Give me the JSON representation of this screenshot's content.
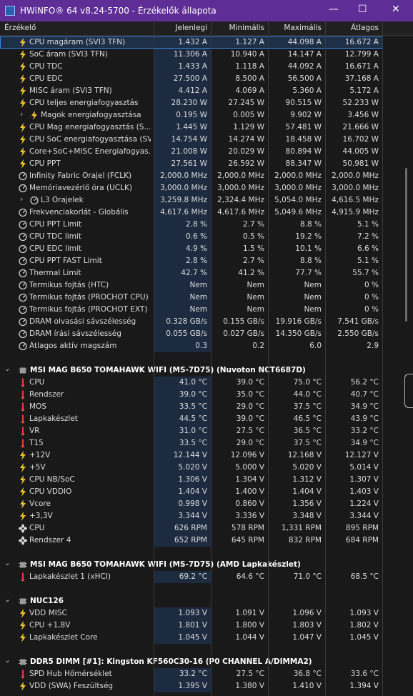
{
  "window": {
    "title": "HWiNFO® 64 v8.24-5700 - Érzékelők állapota"
  },
  "columns": [
    "Érzékelő",
    "Jelenlegi",
    "Minimális",
    "Maximális",
    "Átlagos"
  ],
  "sections": [
    {
      "rows": [
        {
          "label": "CPU magáram (SVI3 TFN)",
          "values": [
            "1.432 A",
            "1.127 A",
            "44.098 A",
            "16.672 A"
          ]
        },
        {
          "label": "SoC áram (SVI3 TFN)",
          "values": [
            "11.306 A",
            "10.940 A",
            "14.147 A",
            "12.799 A"
          ]
        },
        {
          "label": "CPU TDC",
          "values": [
            "1.433 A",
            "1.118 A",
            "44.092 A",
            "16.671 A"
          ]
        },
        {
          "label": "CPU EDC",
          "values": [
            "27.500 A",
            "8.500 A",
            "56.500 A",
            "37.168 A"
          ]
        },
        {
          "label": "MISC áram (SVI3 TFN)",
          "values": [
            "4.412 A",
            "4.069 A",
            "5.360 A",
            "5.172 A"
          ]
        },
        {
          "label": "CPU teljes energiafogyasztás",
          "values": [
            "28.230 W",
            "27.245 W",
            "90.515 W",
            "52.233 W"
          ]
        },
        {
          "label": "Magok energiafogyasztása",
          "values": [
            "0.195 W",
            "0.005 W",
            "9.902 W",
            "3.456 W"
          ]
        },
        {
          "label": "CPU Mag energiafogyasztás (S...",
          "values": [
            "1.445 W",
            "1.129 W",
            "57.481 W",
            "21.666 W"
          ]
        },
        {
          "label": "CPU SoC energiafogyasztása (SV...",
          "values": [
            "14.754 W",
            "14.274 W",
            "18.458 W",
            "16.702 W"
          ]
        },
        {
          "label": "Core+SoC+MISC Energiafogyas...",
          "values": [
            "21.008 W",
            "20.029 W",
            "80.894 W",
            "44.005 W"
          ]
        },
        {
          "label": "CPU PPT",
          "values": [
            "27.561 W",
            "26.592 W",
            "88.347 W",
            "50.981 W"
          ]
        },
        {
          "label": "Infinity Fabric Órajel (FCLK)",
          "values": [
            "2,000.0 MHz",
            "2,000.0 MHz",
            "2,000.0 MHz",
            "2,000.0 MHz"
          ]
        },
        {
          "label": "Memóriavezérlő óra (UCLK)",
          "values": [
            "3,000.0 MHz",
            "3,000.0 MHz",
            "3,000.0 MHz",
            "3,000.0 MHz"
          ]
        },
        {
          "label": "L3 Órajelek",
          "values": [
            "3,259.8 MHz",
            "2,324.4 MHz",
            "5,054.0 MHz",
            "4,616.5 MHz"
          ]
        },
        {
          "label": "Frekvenciakorlát - Globális",
          "values": [
            "4,617.6 MHz",
            "4,617.6 MHz",
            "5,049.6 MHz",
            "4,915.9 MHz"
          ]
        },
        {
          "label": "CPU PPT Limit",
          "values": [
            "2.8 %",
            "2.7 %",
            "8.8 %",
            "5.1 %"
          ]
        },
        {
          "label": "CPU TDC limit",
          "values": [
            "0.6 %",
            "0.5 %",
            "19.2 %",
            "7.2 %"
          ]
        },
        {
          "label": "CPU EDC limit",
          "values": [
            "4.9 %",
            "1.5 %",
            "10.1 %",
            "6.6 %"
          ]
        },
        {
          "label": "CPU PPT FAST Limit",
          "values": [
            "2.8 %",
            "2.7 %",
            "8.8 %",
            "5.1 %"
          ]
        },
        {
          "label": "Thermal Limit",
          "values": [
            "42.7 %",
            "41.2 %",
            "77.7 %",
            "55.7 %"
          ]
        },
        {
          "label": "Termikus fojtás (HTC)",
          "values": [
            "Nem",
            "Nem",
            "Nem",
            "0 %"
          ]
        },
        {
          "label": "Termikus fojtás (PROCHOT CPU)",
          "values": [
            "Nem",
            "Nem",
            "Nem",
            "0 %"
          ]
        },
        {
          "label": "Termikus fojtás (PROCHOT EXT)",
          "values": [
            "Nem",
            "Nem",
            "Nem",
            "0 %"
          ]
        },
        {
          "label": "DRAM olvasási sávszélesség",
          "values": [
            "0.328 GB/s",
            "0.155 GB/s",
            "19.916 GB/s",
            "7.541 GB/s"
          ]
        },
        {
          "label": "DRAM írási sávszélesség",
          "values": [
            "0.055 GB/s",
            "0.027 GB/s",
            "14.350 GB/s",
            "2.550 GB/s"
          ]
        },
        {
          "label": "Átlagos aktív magszám",
          "values": [
            "0.3",
            "0.2",
            "6.0",
            "2.9"
          ]
        }
      ]
    },
    {
      "title": "MSI MAG B650 TOMAHAWK WIFI (MS-7D75) (Nuvoton NCT6687D)",
      "rows": [
        {
          "label": "CPU",
          "values": [
            "41.0 °C",
            "39.0 °C",
            "75.0 °C",
            "56.2 °C"
          ]
        },
        {
          "label": "Rendszer",
          "values": [
            "39.0 °C",
            "35.0 °C",
            "44.0 °C",
            "40.7 °C"
          ]
        },
        {
          "label": "MOS",
          "values": [
            "33.5 °C",
            "29.0 °C",
            "37.5 °C",
            "34.9 °C"
          ]
        },
        {
          "label": "Lapkakészlet",
          "values": [
            "44.5 °C",
            "39.0 °C",
            "46.5 °C",
            "43.9 °C"
          ]
        },
        {
          "label": "VR",
          "values": [
            "31.0 °C",
            "27.5 °C",
            "36.5 °C",
            "33.2 °C"
          ]
        },
        {
          "label": "T15",
          "values": [
            "33.5 °C",
            "29.0 °C",
            "37.5 °C",
            "34.9 °C"
          ]
        },
        {
          "label": "+12V",
          "values": [
            "12.144 V",
            "12.096 V",
            "12.168 V",
            "12.127 V"
          ]
        },
        {
          "label": "+5V",
          "values": [
            "5.020 V",
            "5.000 V",
            "5.020 V",
            "5.014 V"
          ]
        },
        {
          "label": "CPU NB/SoC",
          "values": [
            "1.306 V",
            "1.304 V",
            "1.312 V",
            "1.307 V"
          ]
        },
        {
          "label": "CPU VDDIO",
          "values": [
            "1.404 V",
            "1.400 V",
            "1.404 V",
            "1.403 V"
          ]
        },
        {
          "label": "Vcore",
          "values": [
            "0.998 V",
            "0.860 V",
            "1.356 V",
            "1.224 V"
          ]
        },
        {
          "label": "+3,3V",
          "values": [
            "3.344 V",
            "3.336 V",
            "3.348 V",
            "3.344 V"
          ]
        },
        {
          "label": "CPU",
          "values": [
            "626 RPM",
            "578 RPM",
            "1,331 RPM",
            "895 RPM"
          ]
        },
        {
          "label": "Rendszer 4",
          "values": [
            "652 RPM",
            "645 RPM",
            "832 RPM",
            "684 RPM"
          ]
        }
      ]
    },
    {
      "title": "MSI MAG B650 TOMAHAWK WIFI (MS-7D75) (AMD Lapkakészlet)",
      "rows": [
        {
          "label": "Lapkakészlet 1 (xHCI)",
          "values": [
            "69.2 °C",
            "64.6 °C",
            "71.0 °C",
            "68.5 °C"
          ]
        }
      ]
    },
    {
      "title": "NUC126",
      "rows": [
        {
          "label": "VDD MISC",
          "values": [
            "1.093 V",
            "1.091 V",
            "1.096 V",
            "1.093 V"
          ]
        },
        {
          "label": "CPU +1,8V",
          "values": [
            "1.801 V",
            "1.800 V",
            "1.803 V",
            "1.802 V"
          ]
        },
        {
          "label": "Lapkakészlet Core",
          "values": [
            "1.045 V",
            "1.044 V",
            "1.047 V",
            "1.045 V"
          ]
        }
      ]
    },
    {
      "title": "DDR5 DIMM [#1]: Kingston KF560C30-16 (P0 CHANNEL A/DIMMA2)",
      "rows": [
        {
          "label": "SPD Hub Hőmérséklet",
          "values": [
            "33.2 °C",
            "27.5 °C",
            "36.8 °C",
            "33.6 °C"
          ]
        },
        {
          "label": "VDD (SWA) Feszültség",
          "values": [
            "1.395 V",
            "1.380 V",
            "1.410 V",
            "1.394 V"
          ]
        }
      ]
    }
  ]
}
